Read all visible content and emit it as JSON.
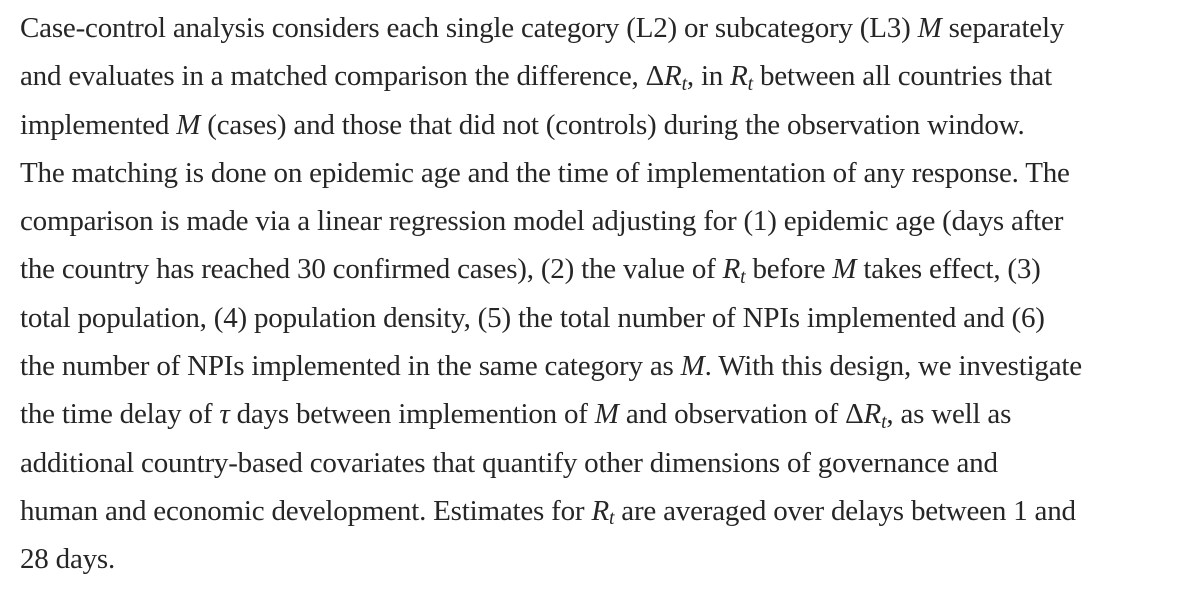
{
  "page": {
    "background_color": "#ffffff",
    "text_color": "#262626"
  },
  "paragraph": {
    "lines": [
      [
        {
          "t": "Case-control analysis considers each single category (L2) or subcategory (L3) ",
          "s": "n"
        },
        {
          "t": "M",
          "s": "i"
        },
        {
          "t": " separately",
          "s": "n"
        }
      ],
      [
        {
          "t": "and evaluates in a matched comparison the difference, Δ",
          "s": "n"
        },
        {
          "t": "R",
          "s": "i"
        },
        {
          "t": "t",
          "s": "sub"
        },
        {
          "t": ", in ",
          "s": "n"
        },
        {
          "t": "R",
          "s": "i"
        },
        {
          "t": "t",
          "s": "sub"
        },
        {
          "t": " between all countries that",
          "s": "n"
        }
      ],
      [
        {
          "t": "implemented ",
          "s": "n"
        },
        {
          "t": "M",
          "s": "i"
        },
        {
          "t": " (cases) and those that did not (controls) during the observation window.",
          "s": "n"
        }
      ],
      [
        {
          "t": "The matching is done on epidemic age and the time of implementation of any response. The",
          "s": "n"
        }
      ],
      [
        {
          "t": "comparison is made via a linear regression model adjusting for (1) epidemic age (days after",
          "s": "n"
        }
      ],
      [
        {
          "t": "the country has reached 30 confirmed cases), (2) the value of ",
          "s": "n"
        },
        {
          "t": "R",
          "s": "i"
        },
        {
          "t": "t",
          "s": "sub"
        },
        {
          "t": " before ",
          "s": "n"
        },
        {
          "t": "M",
          "s": "i"
        },
        {
          "t": " takes effect, (3)",
          "s": "n"
        }
      ],
      [
        {
          "t": "total population, (4) population density, (5) the total number of NPIs implemented and (6)",
          "s": "n"
        }
      ],
      [
        {
          "t": "the number of NPIs implemented in the same category as ",
          "s": "n"
        },
        {
          "t": "M",
          "s": "i"
        },
        {
          "t": ". With this design, we investigate",
          "s": "n"
        }
      ],
      [
        {
          "t": "the time delay of ",
          "s": "n"
        },
        {
          "t": "τ",
          "s": "i"
        },
        {
          "t": " days between implemention of ",
          "s": "n"
        },
        {
          "t": "M",
          "s": "i"
        },
        {
          "t": " and observation of Δ",
          "s": "n"
        },
        {
          "t": "R",
          "s": "i"
        },
        {
          "t": "t",
          "s": "sub"
        },
        {
          "t": ", as well as",
          "s": "n"
        }
      ],
      [
        {
          "t": "additional country-based covariates that quantify other dimensions of governance and",
          "s": "n"
        }
      ],
      [
        {
          "t": "human and economic development. Estimates for ",
          "s": "n"
        },
        {
          "t": "R",
          "s": "i"
        },
        {
          "t": "t",
          "s": "sub"
        },
        {
          "t": " are averaged over delays between 1 and",
          "s": "n"
        }
      ],
      [
        {
          "t": "28 days.",
          "s": "n"
        }
      ]
    ]
  }
}
